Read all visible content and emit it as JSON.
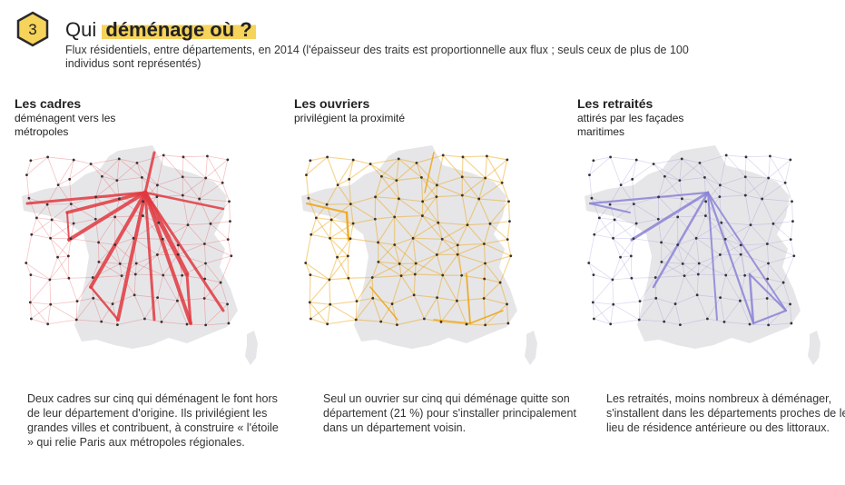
{
  "header": {
    "number": "3",
    "title_lead": "Qui",
    "title_highlight": "déménage où ?",
    "subtitle": "Flux résidentiels, entre départements, en 2014 (l'épaisseur des traits est proportionnelle aux flux ; seuls ceux de plus de 100 individus sont représentés)"
  },
  "colors": {
    "badge": "#f6d35a",
    "cadres": "#e0383f",
    "ouvriers": "#eea20c",
    "retraites": "#8a83d6",
    "land": "#e6e6e8",
    "node": "#333333"
  },
  "panels": [
    {
      "id": "cadres",
      "title": "Les cadres",
      "desc": "déménagent vers les métropoles",
      "caption": "Deux cadres sur cinq qui déménagent le font hors de leur département d'origine. Ils privilégient les grandes villes et contribuent, à construire « l'étoile » qui relie Paris aux métropoles régionales.",
      "color_key": "cadres"
    },
    {
      "id": "ouvriers",
      "title": "Les ouvriers",
      "desc": "privilégient la proximité",
      "caption": "Seul un ouvrier sur cinq qui déménage quitte son département (21 %) pour s'installer principalement dans un département voisin.",
      "color_key": "ouvriers"
    },
    {
      "id": "retraites",
      "title": "Les retraités",
      "desc": "attirés par les façades maritimes",
      "caption": "Les retraités, moins nombreux à déménager, s'installent dans les départements proches de leur lieu de résidence antérieure ou des littoraux.",
      "color_key": "retraites"
    }
  ]
}
